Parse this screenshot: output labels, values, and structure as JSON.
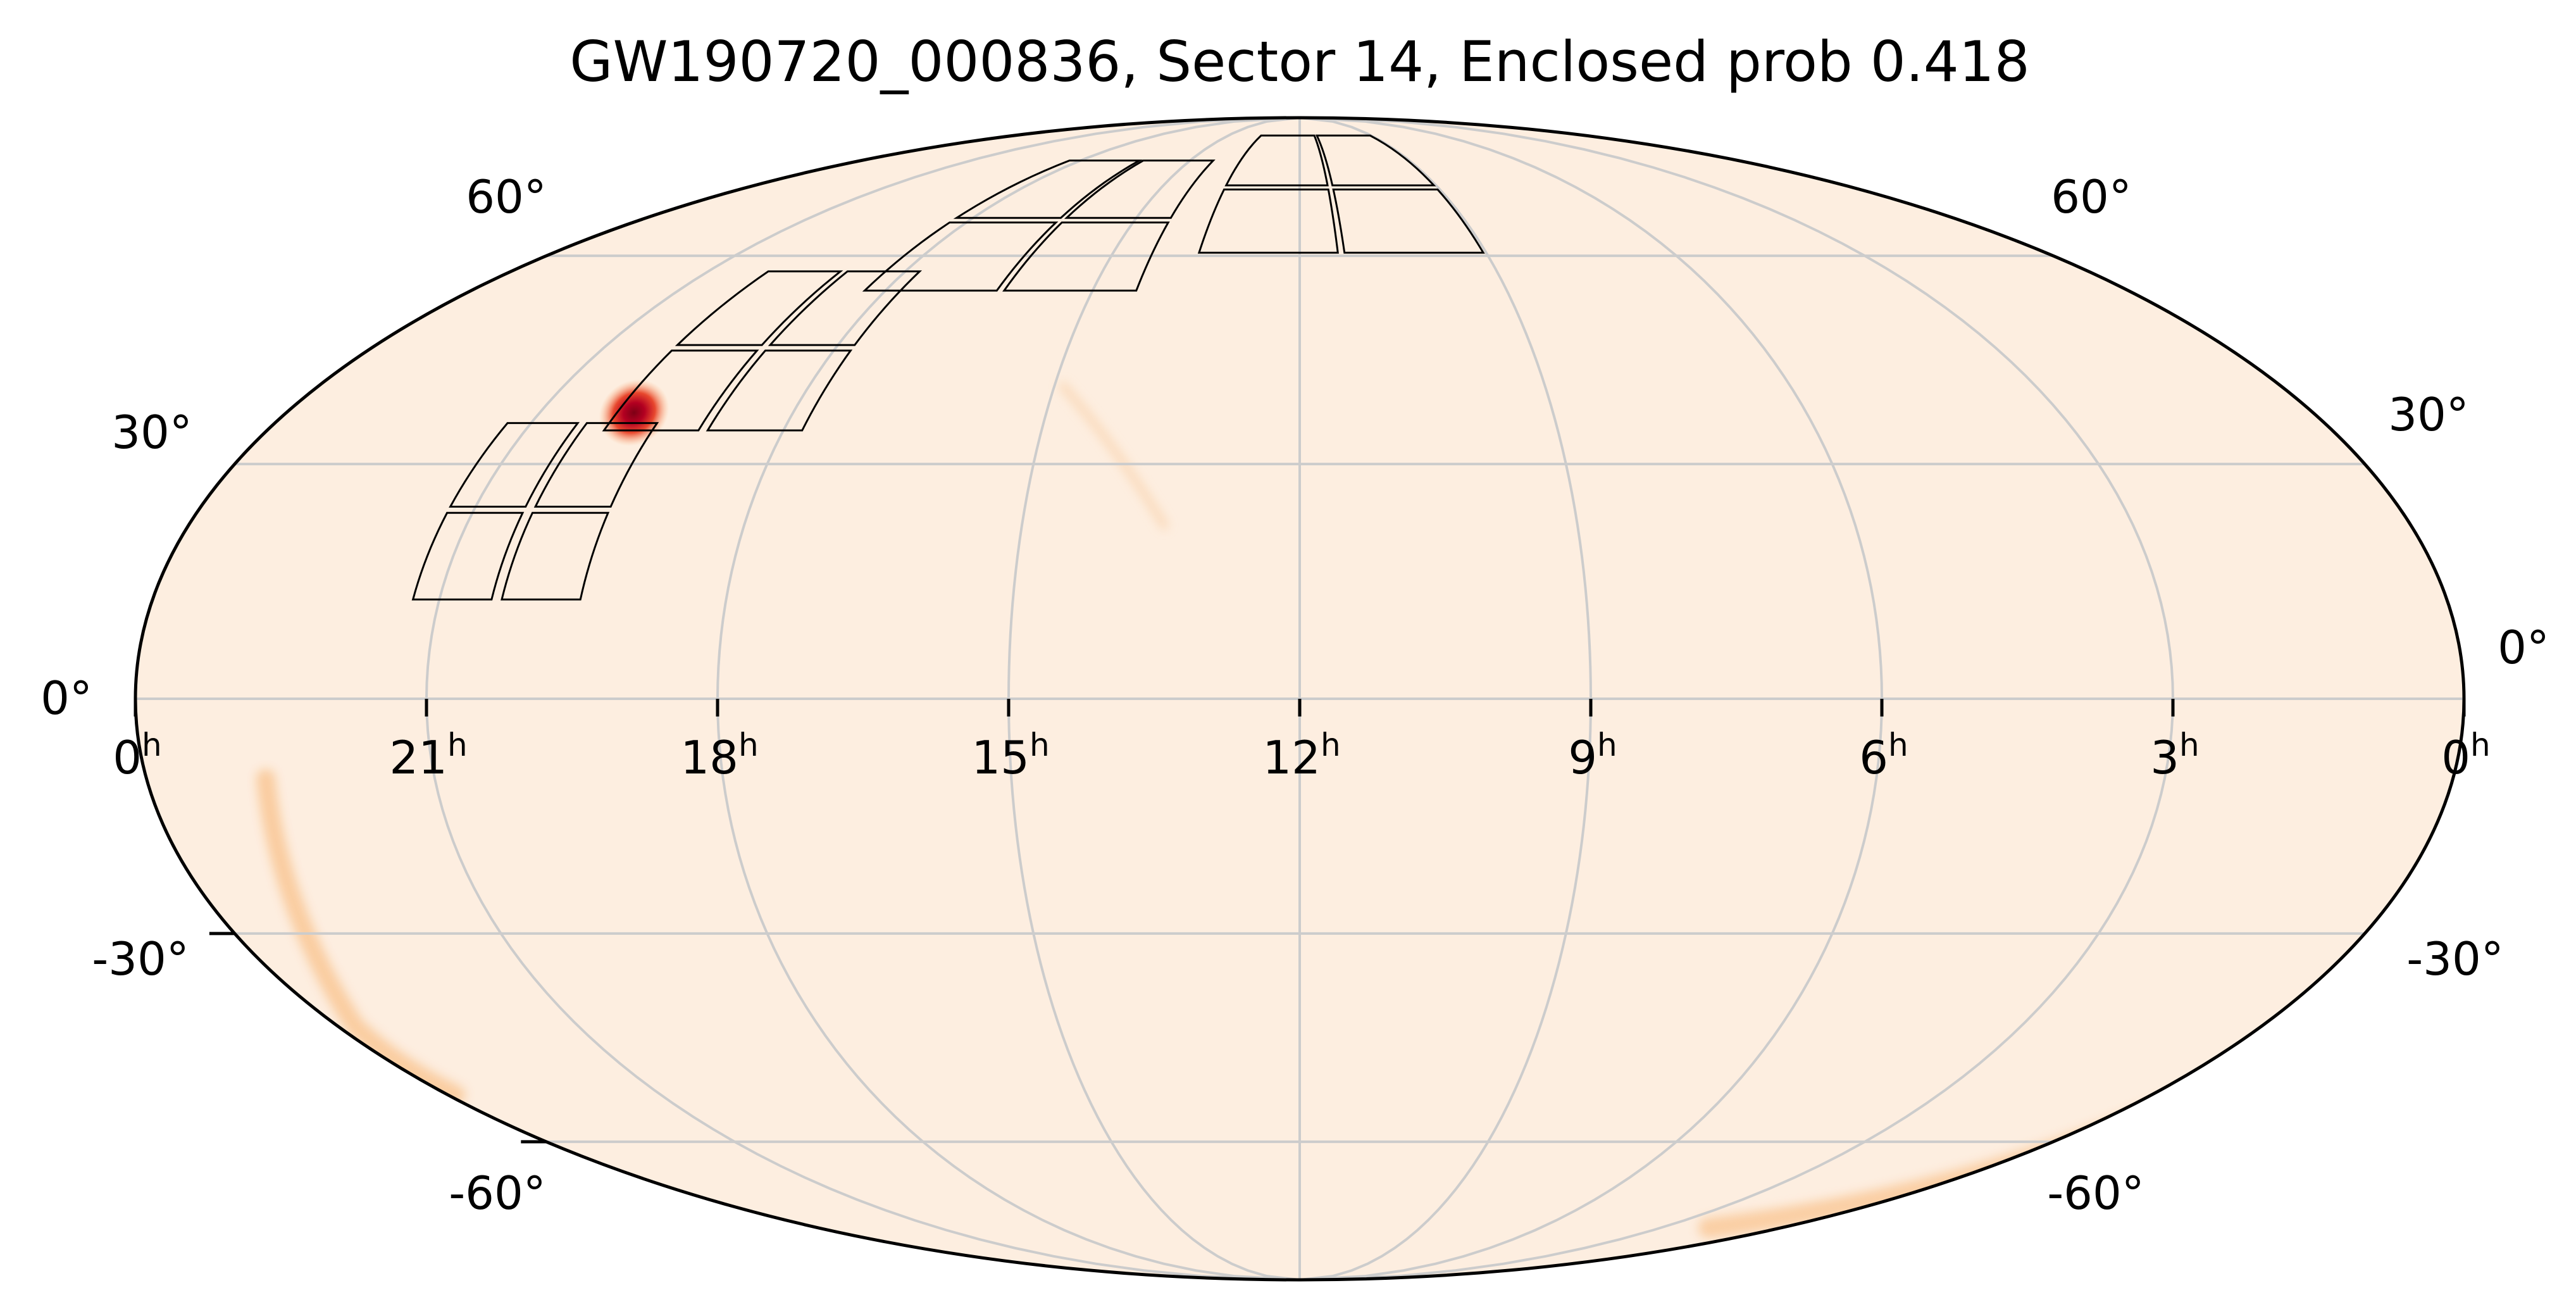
{
  "title": "GW190720_000836, Sector 14, Enclosed prob 0.418",
  "projection": "mollweide",
  "colors": {
    "background": "#fdeee0",
    "grid": "#cccccc",
    "outline": "#000000",
    "footprint": "#000000",
    "hotspot_core": "#b30021",
    "hotspot_mid": "#e8482e",
    "hotspot_edge": "#fcbc8a",
    "arc_faint": "#f9c99a"
  },
  "ra_axis": {
    "ticks": [
      {
        "value": "0",
        "unit": "h"
      },
      {
        "value": "21",
        "unit": "h"
      },
      {
        "value": "18",
        "unit": "h"
      },
      {
        "value": "15",
        "unit": "h"
      },
      {
        "value": "12",
        "unit": "h"
      },
      {
        "value": "9",
        "unit": "h"
      },
      {
        "value": "6",
        "unit": "h"
      },
      {
        "value": "3",
        "unit": "h"
      },
      {
        "value": "0",
        "unit": "h"
      }
    ]
  },
  "dec_axis": {
    "left": [
      "60°",
      "30°",
      "0°",
      "-30°",
      "-60°"
    ],
    "right": [
      "60°",
      "30°",
      "0°",
      "-30°",
      "-60°"
    ]
  },
  "sector": 14,
  "enclosed_prob": 0.418,
  "camera_footprints": 4,
  "ccds_per_camera": 4
}
